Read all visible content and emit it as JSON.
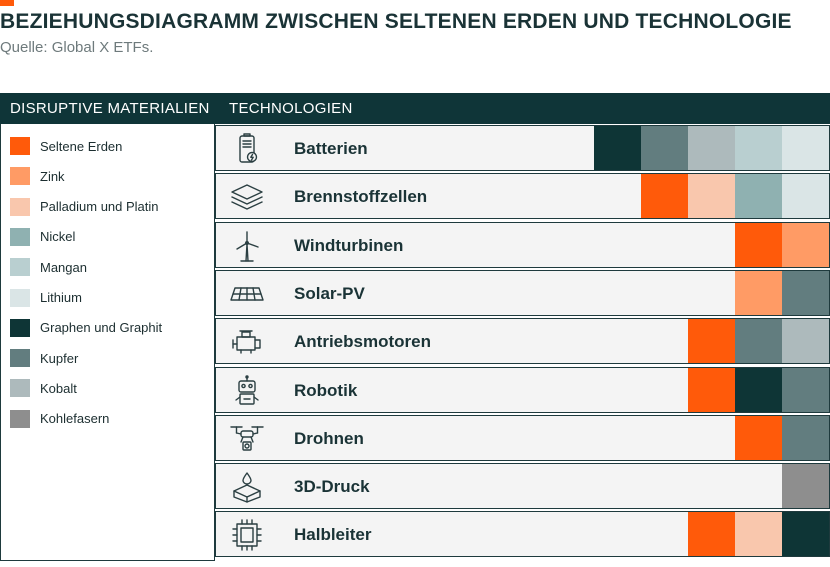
{
  "title": "BEZIEHUNGSDIAGRAMM ZWISCHEN SELTENEN ERDEN UND TECHNOLOGIE",
  "source": "Quelle: Global X ETFs.",
  "header": {
    "left": "DISRUPTIVE MATERIALIEN",
    "right": "TECHNOLOGIEN"
  },
  "materials": [
    {
      "label": "Seltene Erden",
      "color": "#FF5A0A"
    },
    {
      "label": "Zink",
      "color": "#FF9B65"
    },
    {
      "label": "Palladium und Platin",
      "color": "#F9C7AD"
    },
    {
      "label": "Nickel",
      "color": "#8FB1B1"
    },
    {
      "label": "Mangan",
      "color": "#B9CFD0"
    },
    {
      "label": "Lithium",
      "color": "#DAE5E6"
    },
    {
      "label": "Graphen und Graphit",
      "color": "#0E3536"
    },
    {
      "label": "Kupfer",
      "color": "#627D7F"
    },
    {
      "label": "Kobalt",
      "color": "#ADBABC"
    },
    {
      "label": "Kohlefasern",
      "color": "#8E8E8E"
    }
  ],
  "technologies": [
    {
      "label": "Batterien",
      "icon": "battery-icon",
      "materials": [
        "Graphen und Graphit",
        "Kupfer",
        "Kobalt",
        "Mangan",
        "Lithium"
      ]
    },
    {
      "label": "Brennstoffzellen",
      "icon": "layers-icon",
      "materials": [
        "Seltene Erden",
        "Palladium und Platin",
        "Nickel",
        "Lithium"
      ]
    },
    {
      "label": "Windturbinen",
      "icon": "wind-turbine-icon",
      "materials": [
        "Seltene Erden",
        "Zink"
      ]
    },
    {
      "label": "Solar-PV",
      "icon": "solar-panel-icon",
      "materials": [
        "Zink",
        "Kupfer"
      ]
    },
    {
      "label": "Antriebsmotoren",
      "icon": "engine-icon",
      "materials": [
        "Seltene Erden",
        "Kupfer",
        "Kobalt"
      ]
    },
    {
      "label": "Robotik",
      "icon": "robot-icon",
      "materials": [
        "Seltene Erden",
        "Graphen und Graphit",
        "Kupfer"
      ]
    },
    {
      "label": "Drohnen",
      "icon": "drone-icon",
      "materials": [
        "Seltene Erden",
        "Kupfer"
      ]
    },
    {
      "label": "3D-Druck",
      "icon": "3d-print-icon",
      "materials": [
        "Kohlefasern"
      ]
    },
    {
      "label": "Halbleiter",
      "icon": "chip-icon",
      "materials": [
        "Seltene Erden",
        "Palladium und Platin",
        "Graphen und Graphit"
      ]
    }
  ]
}
